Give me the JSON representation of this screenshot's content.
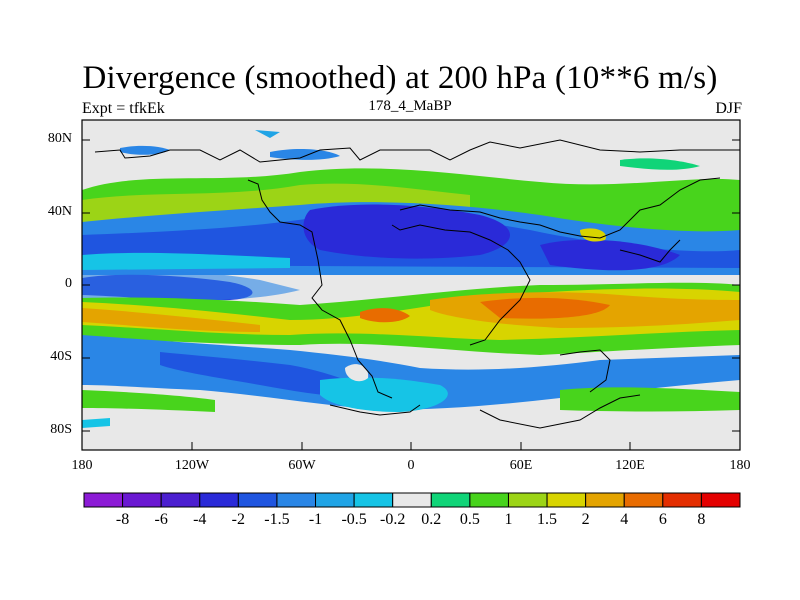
{
  "title": "Divergence (smoothed) at 200 hPa (10**6 m/s)",
  "left_label": "Expt = tfkEk",
  "center_label": "178_4_MaBP",
  "right_label": "DJF",
  "y_ticks": [
    "80N",
    "40N",
    "0",
    "40S",
    "80S"
  ],
  "x_ticks": [
    "180",
    "120W",
    "60W",
    "0",
    "60E",
    "120E",
    "180"
  ],
  "colorbar": {
    "colors": [
      "#8c1bd6",
      "#6a18d2",
      "#4b1fd0",
      "#2a2ad8",
      "#1f55e0",
      "#2a86e6",
      "#20a4e6",
      "#16c4e6",
      "#e8e8e8",
      "#10d478",
      "#48d41c",
      "#9cd416",
      "#d8d400",
      "#e4a400",
      "#e86c00",
      "#e42e00",
      "#e40000"
    ],
    "labels": [
      "-8",
      "-6",
      "-4",
      "-2",
      "-1.5",
      "-1",
      "-0.5",
      "-0.2",
      "0.2",
      "0.5",
      "1",
      "1.5",
      "2",
      "4",
      "6",
      "8"
    ]
  },
  "map_data": {
    "projection": "cylindrical equidistant",
    "lon_range": [
      -180,
      180
    ],
    "lat_range": [
      -90,
      90
    ],
    "variable": "divergence at 200 hPa"
  }
}
